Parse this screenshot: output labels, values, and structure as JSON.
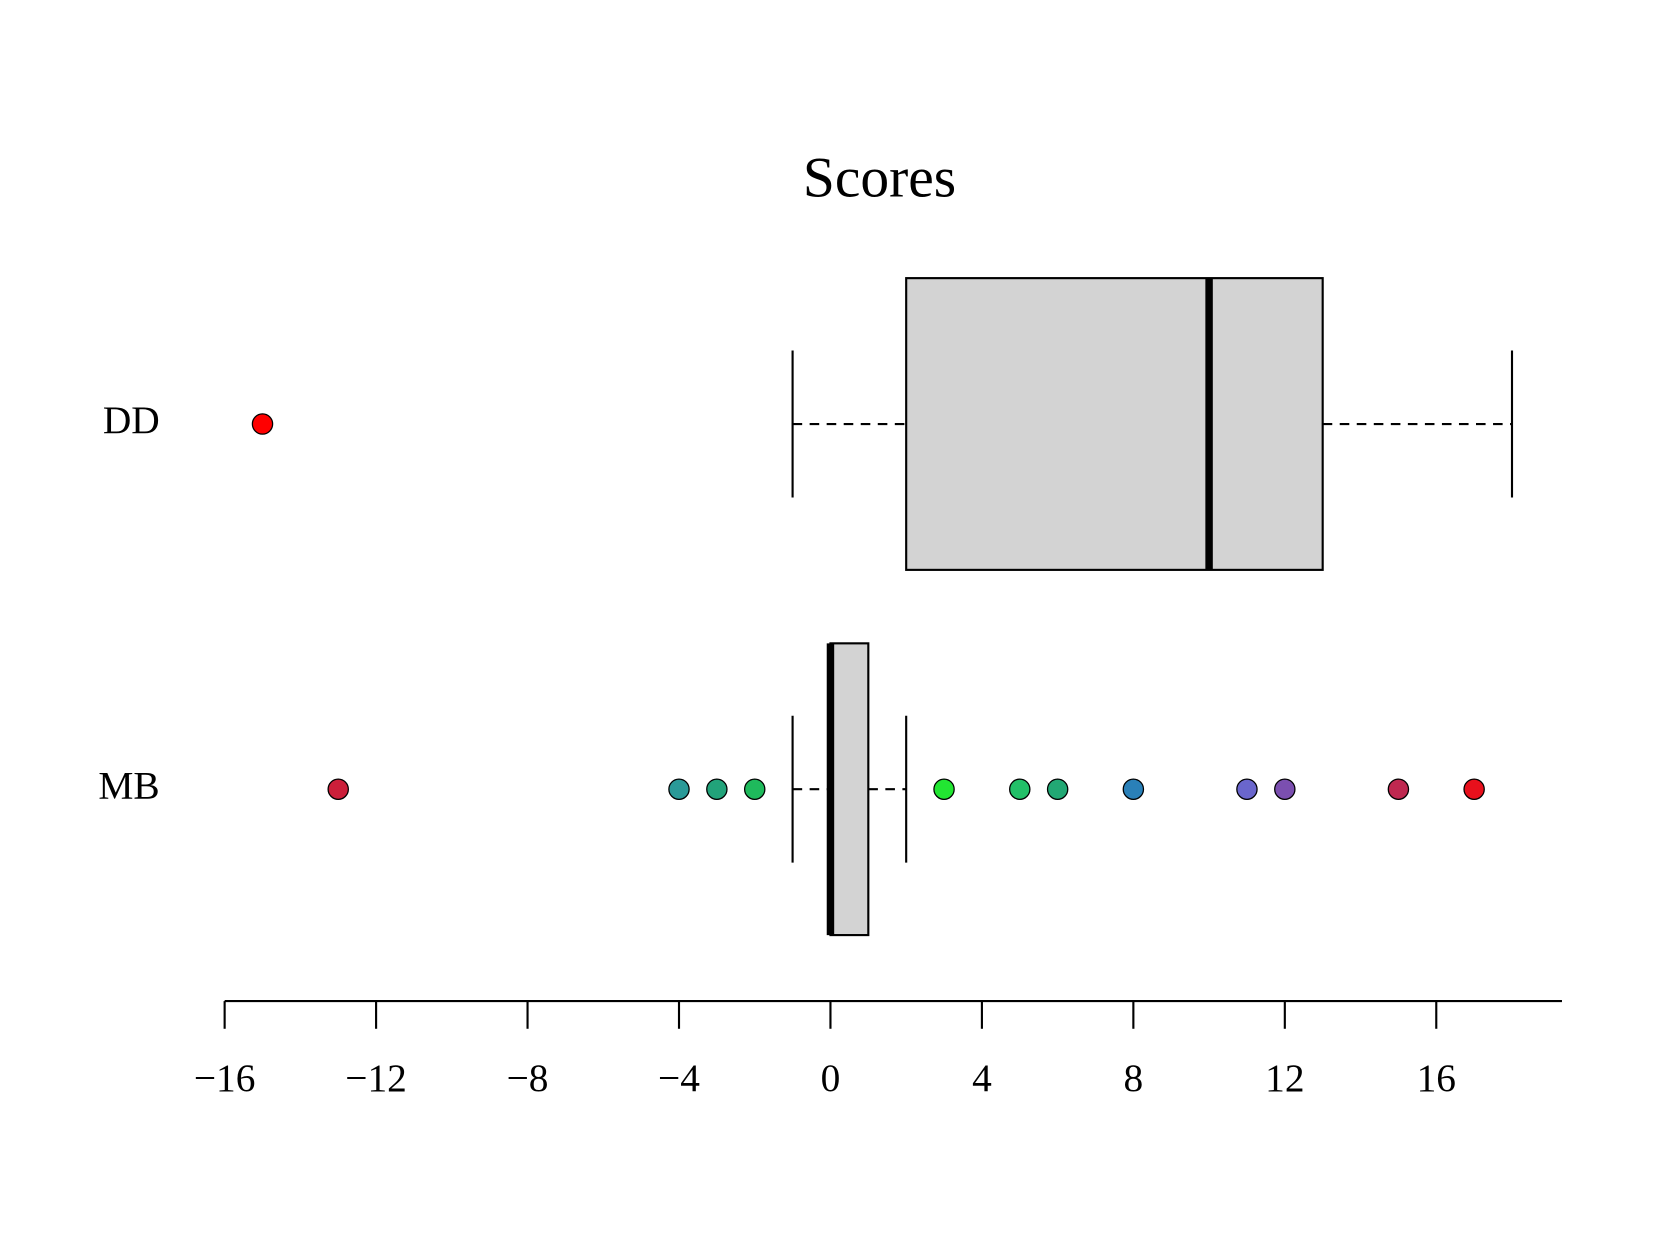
{
  "chart_data": {
    "type": "boxplot",
    "title": "Scores",
    "orientation": "horizontal",
    "box_color": "#d3d3d3",
    "series": [
      {
        "name": "DD",
        "whislo": -1,
        "q1": 2,
        "median": 10,
        "q3": 13,
        "whishi": 18,
        "outliers": [
          -15
        ],
        "outlier_colors": [
          "#ff0000"
        ]
      },
      {
        "name": "MB",
        "whislo": -1,
        "q1": 0,
        "median": 0,
        "q3": 1,
        "whishi": 2,
        "outliers": [
          -13,
          -4,
          -3,
          -2,
          3,
          5,
          6,
          8,
          11,
          12,
          15,
          17
        ],
        "outlier_colors": [
          "#cc1f3a",
          "#2a9a98",
          "#22a37a",
          "#1fba5c",
          "#22e632",
          "#22c068",
          "#22a874",
          "#2a80b8",
          "#6a66cc",
          "#7b4fb0",
          "#bf2850",
          "#e8101c"
        ]
      }
    ],
    "xlim": [
      -16.32,
      19.32
    ],
    "xticks": [
      {
        "value": -16,
        "label": "−16"
      },
      {
        "value": -12,
        "label": "−12"
      },
      {
        "value": -8,
        "label": "−8"
      },
      {
        "value": -4,
        "label": "−4"
      },
      0,
      4,
      8,
      12,
      16
    ]
  }
}
